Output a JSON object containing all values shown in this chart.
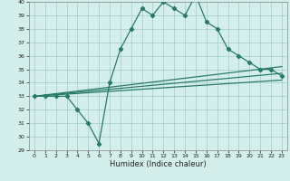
{
  "title": "",
  "xlabel": "Humidex (Indice chaleur)",
  "main_curve": {
    "x": [
      0,
      1,
      2,
      3,
      4,
      5,
      6,
      7,
      8,
      9,
      10,
      11,
      12,
      13,
      14,
      15,
      16,
      17,
      18,
      19,
      20,
      21,
      22,
      23
    ],
    "y": [
      33,
      33,
      33,
      33,
      32,
      31,
      29.5,
      34,
      36.5,
      38,
      39.5,
      39,
      40,
      39.5,
      39,
      40.5,
      38.5,
      38,
      36.5,
      36,
      35.5,
      35,
      35,
      34.5
    ]
  },
  "line1": {
    "x": [
      0,
      23
    ],
    "y": [
      33.0,
      35.2
    ]
  },
  "line2": {
    "x": [
      0,
      23
    ],
    "y": [
      33.0,
      34.7
    ]
  },
  "line3": {
    "x": [
      0,
      23
    ],
    "y": [
      33.0,
      34.2
    ]
  },
  "ylim": [
    29,
    40
  ],
  "xlim": [
    -0.5,
    23.5
  ],
  "yticks": [
    29,
    30,
    31,
    32,
    33,
    34,
    35,
    36,
    37,
    38,
    39,
    40
  ],
  "xticks": [
    0,
    1,
    2,
    3,
    4,
    5,
    6,
    7,
    8,
    9,
    10,
    11,
    12,
    13,
    14,
    15,
    16,
    17,
    18,
    19,
    20,
    21,
    22,
    23
  ],
  "line_color": "#2a7a6a",
  "bg_color": "#d4eeeb",
  "grid_color": "#a0ccc8",
  "marker": "D",
  "marker_size": 2.2
}
